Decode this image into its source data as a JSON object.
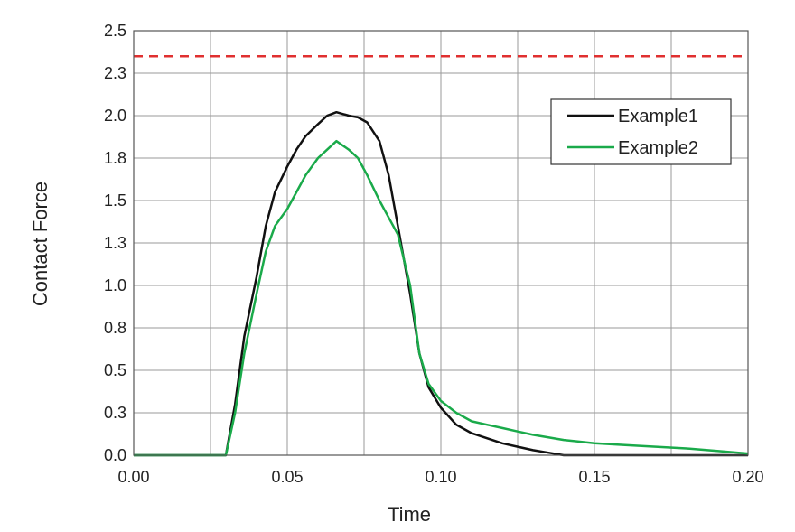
{
  "chart_data": {
    "type": "line",
    "xlabel": "Time",
    "ylabel": "Contact Force",
    "xlim": [
      0,
      0.2
    ],
    "ylim": [
      0,
      2.5
    ],
    "x_ticks": [
      0.0,
      0.05,
      0.1,
      0.15,
      0.2
    ],
    "x_tick_labels": [
      "0.00",
      "0.05",
      "0.10",
      "0.15",
      "0.20"
    ],
    "y_ticks": [
      0,
      0.25,
      0.5,
      0.75,
      1.0,
      1.25,
      1.5,
      1.75,
      2.0,
      2.25,
      2.5
    ],
    "y_tick_labels": [
      "0.0",
      "0.3",
      "0.5",
      "0.8",
      "1.0",
      "1.3",
      "1.5",
      "1.8",
      "2.0",
      "2.3",
      "2.5"
    ],
    "x_gridlines": [
      0.025,
      0.05,
      0.075,
      0.1,
      0.125,
      0.15,
      0.175,
      0.2
    ],
    "grid": true,
    "legend_position": "top-right",
    "reference_line": {
      "y": 2.35,
      "color": "#e03030",
      "style": "dashed"
    },
    "series": [
      {
        "name": "Example1",
        "color": "#111111",
        "x": [
          0.0,
          0.03,
          0.033,
          0.036,
          0.04,
          0.043,
          0.046,
          0.05,
          0.053,
          0.056,
          0.06,
          0.063,
          0.066,
          0.07,
          0.073,
          0.076,
          0.08,
          0.083,
          0.086,
          0.09,
          0.093,
          0.096,
          0.1,
          0.105,
          0.11,
          0.115,
          0.12,
          0.125,
          0.13,
          0.135,
          0.14,
          0.2
        ],
        "y": [
          0.0,
          0.0,
          0.3,
          0.7,
          1.05,
          1.35,
          1.55,
          1.7,
          1.8,
          1.88,
          1.95,
          2.0,
          2.02,
          2.0,
          1.99,
          1.96,
          1.85,
          1.65,
          1.35,
          0.95,
          0.6,
          0.4,
          0.28,
          0.18,
          0.13,
          0.1,
          0.07,
          0.05,
          0.03,
          0.015,
          0.0,
          0.0
        ]
      },
      {
        "name": "Example2",
        "color": "#1aaa4a",
        "x": [
          0.0,
          0.03,
          0.033,
          0.036,
          0.04,
          0.043,
          0.046,
          0.05,
          0.053,
          0.056,
          0.06,
          0.063,
          0.066,
          0.07,
          0.073,
          0.076,
          0.08,
          0.083,
          0.086,
          0.09,
          0.093,
          0.096,
          0.1,
          0.105,
          0.11,
          0.115,
          0.12,
          0.125,
          0.13,
          0.14,
          0.15,
          0.16,
          0.17,
          0.18,
          0.19,
          0.2
        ],
        "y": [
          0.0,
          0.0,
          0.25,
          0.6,
          0.95,
          1.2,
          1.35,
          1.45,
          1.55,
          1.65,
          1.75,
          1.8,
          1.85,
          1.8,
          1.75,
          1.65,
          1.5,
          1.4,
          1.3,
          1.0,
          0.6,
          0.42,
          0.32,
          0.25,
          0.2,
          0.18,
          0.16,
          0.14,
          0.12,
          0.09,
          0.07,
          0.06,
          0.05,
          0.04,
          0.025,
          0.01
        ]
      }
    ]
  }
}
